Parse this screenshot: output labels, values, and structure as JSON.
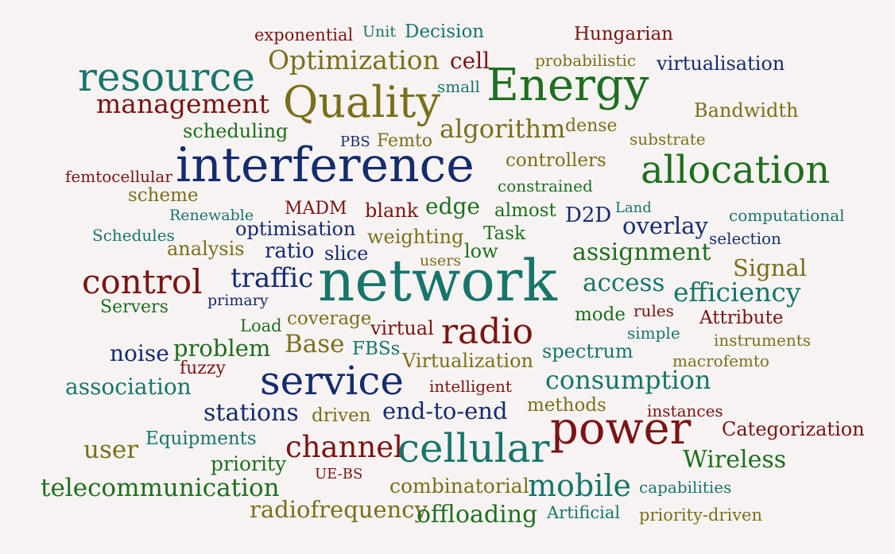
{
  "palette": {
    "background": "#f8f3f3",
    "teal": "#17756b",
    "green": "#1e6f1f",
    "maroon": "#7a1414",
    "olive": "#7a6f1a",
    "navy": "#142c6e"
  },
  "words": [
    {
      "text": "exponential",
      "color": "maroon"
    },
    {
      "text": "Unit",
      "color": "teal"
    },
    {
      "text": "Decision",
      "color": "teal"
    },
    {
      "text": "Hungarian",
      "color": "maroon"
    },
    {
      "text": "Optimization",
      "color": "olive"
    },
    {
      "text": "cell",
      "color": "maroon"
    },
    {
      "text": "probabilistic",
      "color": "olive"
    },
    {
      "text": "virtualisation",
      "color": "navy"
    },
    {
      "text": "resource",
      "color": "teal"
    },
    {
      "text": "Energy",
      "color": "green"
    },
    {
      "text": "small",
      "color": "teal"
    },
    {
      "text": "management",
      "color": "maroon"
    },
    {
      "text": "Quality",
      "color": "olive"
    },
    {
      "text": "Bandwidth",
      "color": "olive"
    },
    {
      "text": "scheduling",
      "color": "green"
    },
    {
      "text": "algorithm",
      "color": "olive"
    },
    {
      "text": "dense",
      "color": "olive"
    },
    {
      "text": "PBS",
      "color": "navy"
    },
    {
      "text": "Femto",
      "color": "olive"
    },
    {
      "text": "substrate",
      "color": "olive"
    },
    {
      "text": "interference",
      "color": "navy"
    },
    {
      "text": "controllers",
      "color": "olive"
    },
    {
      "text": "allocation",
      "color": "green"
    },
    {
      "text": "femtocellular",
      "color": "maroon"
    },
    {
      "text": "constrained",
      "color": "green"
    },
    {
      "text": "scheme",
      "color": "olive"
    },
    {
      "text": "MADM",
      "color": "maroon"
    },
    {
      "text": "blank",
      "color": "maroon"
    },
    {
      "text": "edge",
      "color": "green"
    },
    {
      "text": "almost",
      "color": "green"
    },
    {
      "text": "D2D",
      "color": "navy"
    },
    {
      "text": "Land",
      "color": "teal"
    },
    {
      "text": "Renewable",
      "color": "teal"
    },
    {
      "text": "computational",
      "color": "teal"
    },
    {
      "text": "optimisation",
      "color": "navy"
    },
    {
      "text": "overlay",
      "color": "navy"
    },
    {
      "text": "Schedules",
      "color": "teal"
    },
    {
      "text": "weighting",
      "color": "olive"
    },
    {
      "text": "Task",
      "color": "green"
    },
    {
      "text": "selection",
      "color": "navy"
    },
    {
      "text": "analysis",
      "color": "olive"
    },
    {
      "text": "ratio",
      "color": "navy"
    },
    {
      "text": "slice",
      "color": "navy"
    },
    {
      "text": "low",
      "color": "green"
    },
    {
      "text": "assignment",
      "color": "green"
    },
    {
      "text": "users",
      "color": "olive"
    },
    {
      "text": "Signal",
      "color": "olive"
    },
    {
      "text": "control",
      "color": "maroon"
    },
    {
      "text": "traffic",
      "color": "navy"
    },
    {
      "text": "network",
      "color": "teal"
    },
    {
      "text": "access",
      "color": "teal"
    },
    {
      "text": "efficiency",
      "color": "teal"
    },
    {
      "text": "primary",
      "color": "navy"
    },
    {
      "text": "Servers",
      "color": "green"
    },
    {
      "text": "rules",
      "color": "maroon"
    },
    {
      "text": "mode",
      "color": "green"
    },
    {
      "text": "Attribute",
      "color": "maroon"
    },
    {
      "text": "Load",
      "color": "green"
    },
    {
      "text": "coverage",
      "color": "olive"
    },
    {
      "text": "virtual",
      "color": "maroon"
    },
    {
      "text": "radio",
      "color": "maroon"
    },
    {
      "text": "simple",
      "color": "teal"
    },
    {
      "text": "instruments",
      "color": "olive"
    },
    {
      "text": "noise",
      "color": "navy"
    },
    {
      "text": "problem",
      "color": "green"
    },
    {
      "text": "Base",
      "color": "olive"
    },
    {
      "text": "FBSs",
      "color": "teal"
    },
    {
      "text": "spectrum",
      "color": "teal"
    },
    {
      "text": "fuzzy",
      "color": "maroon"
    },
    {
      "text": "Virtualization",
      "color": "olive"
    },
    {
      "text": "macrofemto",
      "color": "olive"
    },
    {
      "text": "service",
      "color": "navy"
    },
    {
      "text": "association",
      "color": "teal"
    },
    {
      "text": "intelligent",
      "color": "maroon"
    },
    {
      "text": "consumption",
      "color": "teal"
    },
    {
      "text": "methods",
      "color": "olive"
    },
    {
      "text": "stations",
      "color": "navy"
    },
    {
      "text": "driven",
      "color": "olive"
    },
    {
      "text": "end-to-end",
      "color": "navy"
    },
    {
      "text": "instances",
      "color": "maroon"
    },
    {
      "text": "power",
      "color": "maroon"
    },
    {
      "text": "Categorization",
      "color": "maroon"
    },
    {
      "text": "Equipments",
      "color": "teal"
    },
    {
      "text": "user",
      "color": "olive"
    },
    {
      "text": "channel",
      "color": "maroon"
    },
    {
      "text": "cellular",
      "color": "teal"
    },
    {
      "text": "Wireless",
      "color": "green"
    },
    {
      "text": "priority",
      "color": "green"
    },
    {
      "text": "UE-BS",
      "color": "maroon"
    },
    {
      "text": "telecommunication",
      "color": "green"
    },
    {
      "text": "combinatorial",
      "color": "olive"
    },
    {
      "text": "mobile",
      "color": "teal"
    },
    {
      "text": "capabilities",
      "color": "teal"
    },
    {
      "text": "radiofrequency",
      "color": "olive"
    },
    {
      "text": "offloading",
      "color": "green"
    },
    {
      "text": "Artificial",
      "color": "teal"
    },
    {
      "text": "priority-driven",
      "color": "olive"
    }
  ]
}
